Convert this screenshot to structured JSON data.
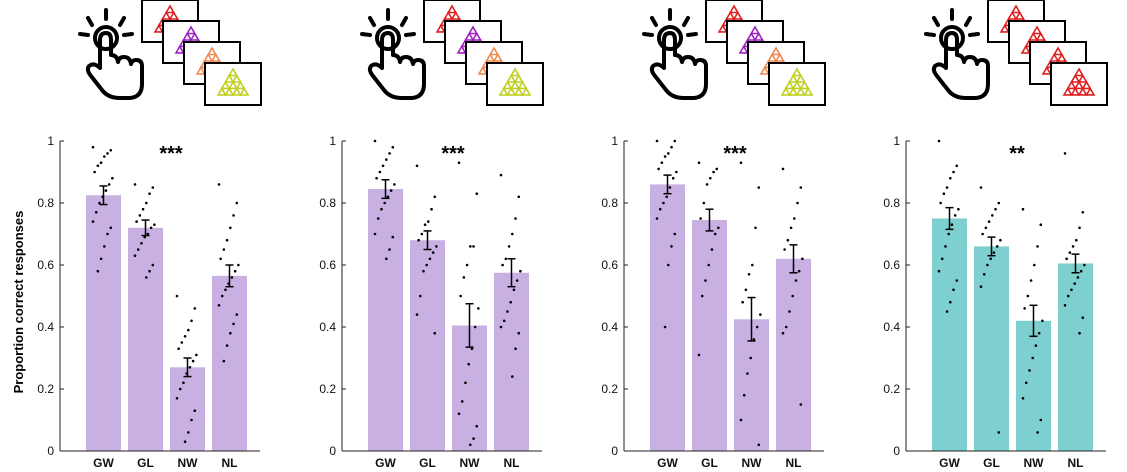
{
  "ylabel": "Proportion correct responses",
  "colors": {
    "purple": "#c9b0e2",
    "teal": "#7ecfcf",
    "card_outline": "#000000"
  },
  "icons": [
    "tap-gesture-icon",
    "stacked-triangle-cards-icon"
  ],
  "panels": [
    {
      "icon_triangle_colors": [
        "#e02020",
        "#a020c0",
        "#f08a50",
        "#c0d020"
      ]
    },
    {
      "icon_triangle_colors": [
        "#e02020",
        "#a020c0",
        "#f08a50",
        "#c0d020"
      ]
    },
    {
      "icon_triangle_colors": [
        "#e02020",
        "#a020c0",
        "#f08a50",
        "#c0d020"
      ]
    },
    {
      "icon_triangle_colors": [
        "#e02020",
        "#e02020",
        "#e02020",
        "#e02020"
      ]
    }
  ],
  "chart_data": [
    {
      "type": "bar",
      "categories": [
        "GW",
        "GL",
        "NW",
        "NL"
      ],
      "values": [
        0.825,
        0.72,
        0.27,
        0.565
      ],
      "errors": [
        0.03,
        0.025,
        0.03,
        0.035
      ],
      "significance": "***",
      "bar_color": "#c9b0e2",
      "ylim": [
        0,
        1
      ],
      "yticks": [
        "0",
        "0.2",
        "0.4",
        "0.6",
        "0.8",
        "1"
      ],
      "points": [
        [
          0.98,
          0.97,
          0.96,
          0.95,
          0.93,
          0.92,
          0.9,
          0.88,
          0.86,
          0.84,
          0.82,
          0.8,
          0.77,
          0.74,
          0.72,
          0.7,
          0.66,
          0.62,
          0.58
        ],
        [
          0.86,
          0.85,
          0.83,
          0.8,
          0.78,
          0.76,
          0.74,
          0.73,
          0.72,
          0.7,
          0.69,
          0.67,
          0.65,
          0.63,
          0.6,
          0.58,
          0.56
        ],
        [
          0.5,
          0.46,
          0.42,
          0.39,
          0.37,
          0.35,
          0.33,
          0.31,
          0.29,
          0.27,
          0.25,
          0.22,
          0.2,
          0.17,
          0.13,
          0.1,
          0.06,
          0.03
        ],
        [
          0.86,
          0.8,
          0.76,
          0.72,
          0.68,
          0.65,
          0.62,
          0.6,
          0.58,
          0.56,
          0.54,
          0.52,
          0.5,
          0.47,
          0.44,
          0.41,
          0.38,
          0.34,
          0.29
        ]
      ]
    },
    {
      "type": "bar",
      "categories": [
        "GW",
        "GL",
        "NW",
        "NL"
      ],
      "values": [
        0.845,
        0.68,
        0.405,
        0.575
      ],
      "errors": [
        0.03,
        0.03,
        0.07,
        0.045
      ],
      "significance": "***",
      "bar_color": "#c9b0e2",
      "ylim": [
        0,
        1
      ],
      "yticks": [
        "0",
        "0.2",
        "0.4",
        "0.6",
        "0.8",
        "1"
      ],
      "points": [
        [
          1.0,
          0.98,
          0.96,
          0.94,
          0.92,
          0.9,
          0.88,
          0.86,
          0.84,
          0.82,
          0.8,
          0.78,
          0.75,
          0.7,
          0.69,
          0.65,
          0.62
        ],
        [
          0.92,
          0.82,
          0.78,
          0.74,
          0.73,
          0.7,
          0.68,
          0.66,
          0.64,
          0.62,
          0.6,
          0.58,
          0.5,
          0.44,
          0.38
        ],
        [
          0.93,
          0.83,
          0.66,
          0.66,
          0.6,
          0.56,
          0.5,
          0.46,
          0.4,
          0.33,
          0.28,
          0.22,
          0.16,
          0.12,
          0.08,
          0.04,
          0.02
        ],
        [
          0.89,
          0.82,
          0.75,
          0.7,
          0.66,
          0.62,
          0.6,
          0.58,
          0.55,
          0.52,
          0.48,
          0.45,
          0.42,
          0.4,
          0.38,
          0.33,
          0.24
        ]
      ]
    },
    {
      "type": "bar",
      "categories": [
        "GW",
        "GL",
        "NW",
        "NL"
      ],
      "values": [
        0.86,
        0.745,
        0.425,
        0.62
      ],
      "errors": [
        0.03,
        0.035,
        0.07,
        0.045
      ],
      "significance": "***",
      "bar_color": "#c9b0e2",
      "ylim": [
        0,
        1
      ],
      "yticks": [
        "0",
        "0.2",
        "0.4",
        "0.6",
        "0.8",
        "1"
      ],
      "points": [
        [
          1.0,
          1.0,
          0.98,
          0.96,
          0.95,
          0.93,
          0.91,
          0.9,
          0.88,
          0.85,
          0.82,
          0.8,
          0.78,
          0.75,
          0.7,
          0.66,
          0.6,
          0.4
        ],
        [
          0.93,
          0.91,
          0.9,
          0.88,
          0.86,
          0.8,
          0.75,
          0.72,
          0.7,
          0.65,
          0.6,
          0.55,
          0.5,
          0.31
        ],
        [
          0.93,
          0.85,
          0.72,
          0.6,
          0.57,
          0.52,
          0.48,
          0.44,
          0.4,
          0.36,
          0.3,
          0.25,
          0.18,
          0.1,
          0.02
        ],
        [
          0.91,
          0.85,
          0.8,
          0.75,
          0.72,
          0.68,
          0.65,
          0.62,
          0.58,
          0.55,
          0.5,
          0.45,
          0.4,
          0.38,
          0.15
        ]
      ]
    },
    {
      "type": "bar",
      "categories": [
        "GW",
        "GL",
        "NW",
        "NL"
      ],
      "values": [
        0.75,
        0.66,
        0.42,
        0.605
      ],
      "errors": [
        0.035,
        0.03,
        0.05,
        0.03
      ],
      "significance": "**",
      "bar_color": "#7ecfcf",
      "ylim": [
        0,
        1
      ],
      "yticks": [
        "0",
        "0.2",
        "0.4",
        "0.6",
        "0.8",
        "1"
      ],
      "points": [
        [
          1.0,
          0.92,
          0.9,
          0.88,
          0.85,
          0.83,
          0.8,
          0.78,
          0.76,
          0.73,
          0.7,
          0.66,
          0.62,
          0.58,
          0.55,
          0.52,
          0.48,
          0.45
        ],
        [
          0.85,
          0.8,
          0.78,
          0.76,
          0.74,
          0.72,
          0.7,
          0.68,
          0.66,
          0.64,
          0.62,
          0.6,
          0.57,
          0.53,
          0.06
        ],
        [
          0.78,
          0.73,
          0.66,
          0.6,
          0.55,
          0.5,
          0.46,
          0.42,
          0.38,
          0.34,
          0.3,
          0.26,
          0.22,
          0.17,
          0.1,
          0.06
        ],
        [
          0.96,
          0.77,
          0.72,
          0.68,
          0.66,
          0.64,
          0.62,
          0.6,
          0.58,
          0.56,
          0.54,
          0.52,
          0.5,
          0.47,
          0.43,
          0.38
        ]
      ]
    }
  ]
}
